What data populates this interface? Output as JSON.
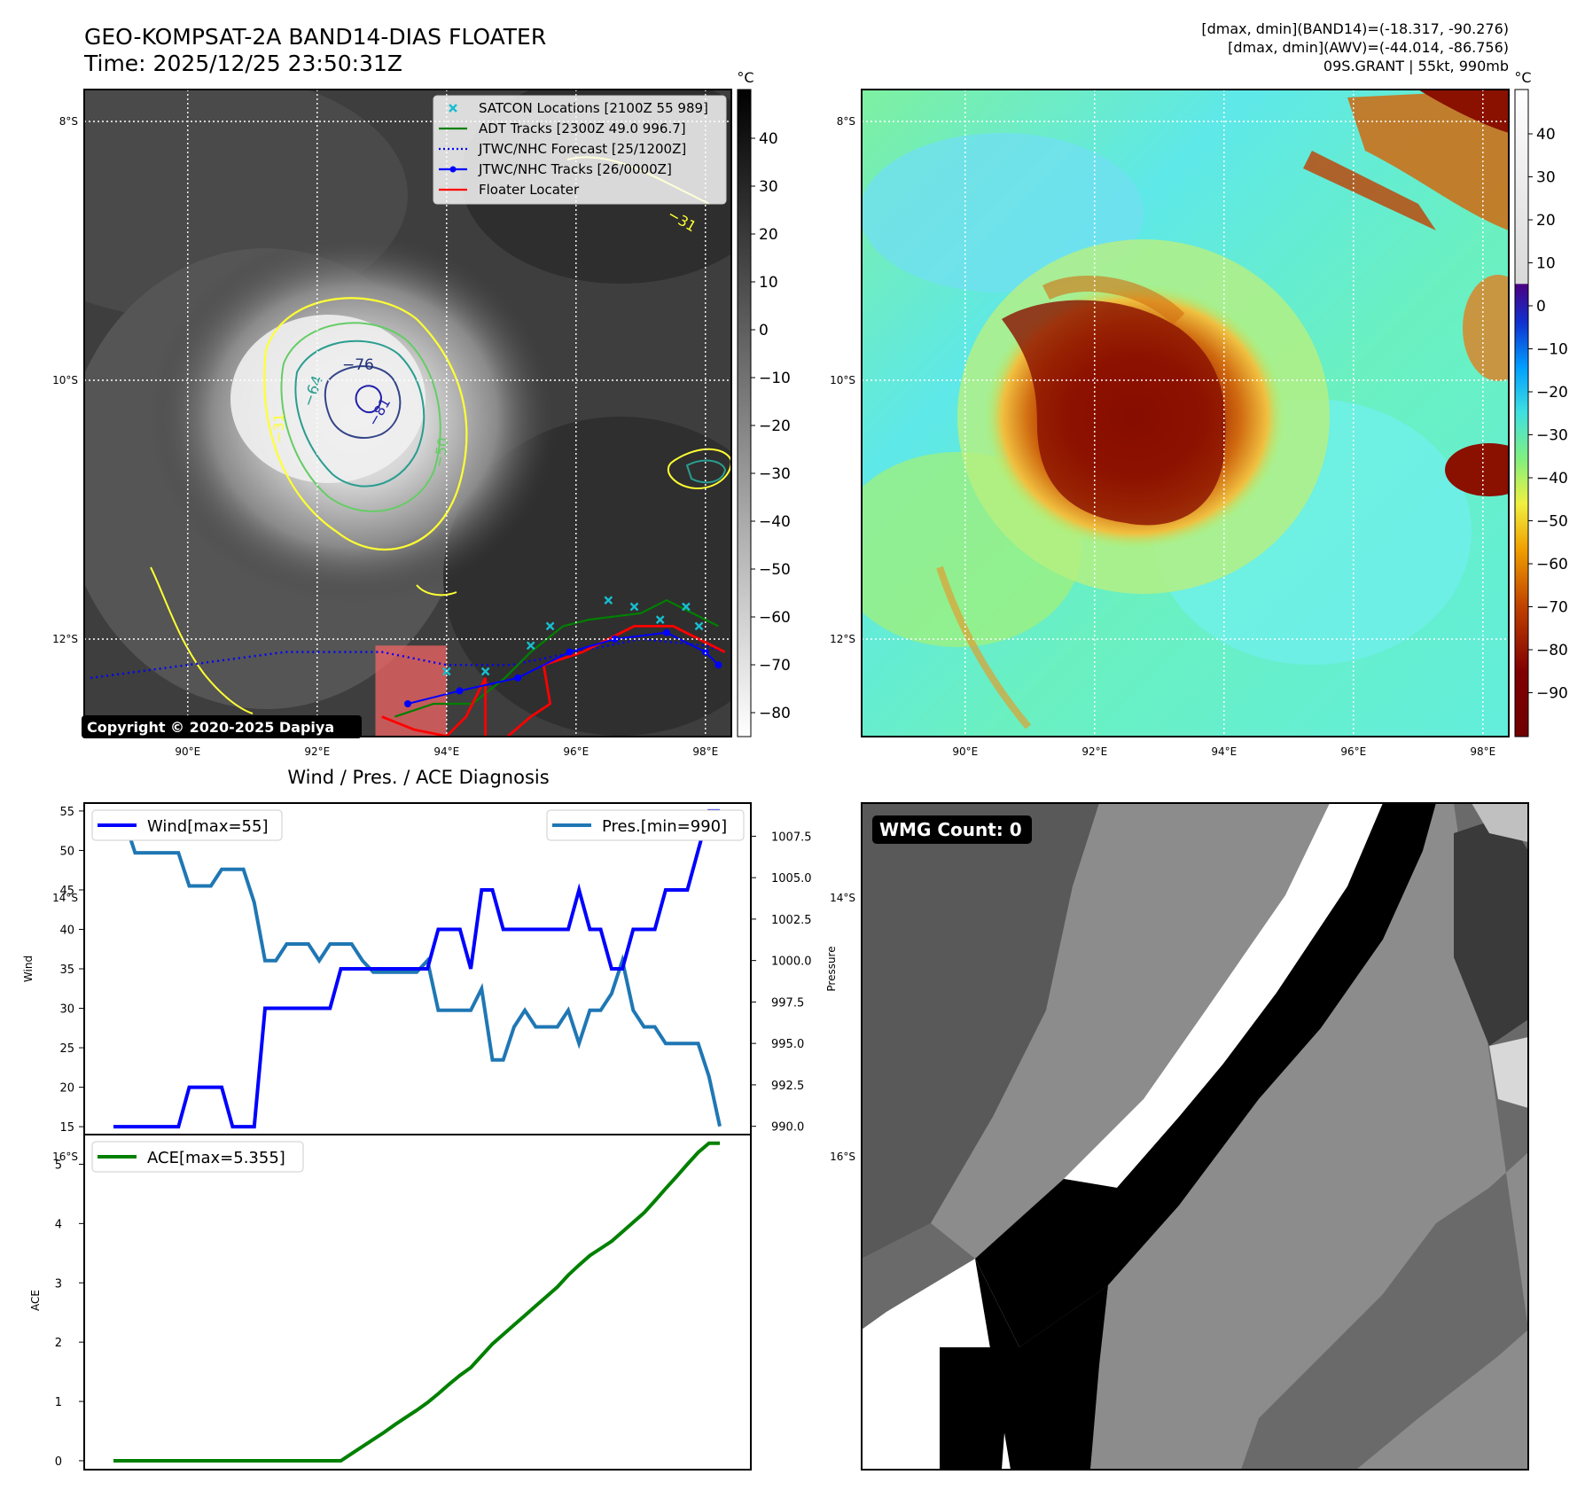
{
  "header": {
    "title_line1": "GEO-KOMPSAT-2A BAND14-DIAS FLOATER",
    "title_line2": "Time: 2025/12/25 23:50:31Z",
    "right_line1": "[dmax, dmin](BAND14)=(-18.317, -90.276)",
    "right_line2": "[dmax, dmin](AWV)=(-44.014, -86.756)",
    "right_line3": "09S.GRANT | 55kt, 990mb"
  },
  "map": {
    "lat_labels": [
      "8°S",
      "10°S",
      "12°S",
      "14°S",
      "16°S"
    ],
    "lon_labels": [
      "90°E",
      "92°E",
      "94°E",
      "96°E",
      "98°E"
    ],
    "ir_colorbar": {
      "unit": "°C",
      "ticks": [
        "40",
        "30",
        "20",
        "10",
        "0",
        "−10",
        "−20",
        "−30",
        "−40",
        "−50",
        "−60",
        "−70",
        "−80"
      ]
    },
    "wv_colorbar": {
      "unit": "°C",
      "ticks": [
        "40",
        "30",
        "20",
        "10",
        "0",
        "−10",
        "−20",
        "−30",
        "−40",
        "−50",
        "−60",
        "−70",
        "−80",
        "−90"
      ]
    },
    "contour_labels": [
      "−76",
      "−64",
      "−81",
      "−50",
      "−31",
      "−31"
    ],
    "copyright": "Copyright © 2020-2025 Dapiya",
    "legend": [
      {
        "label": "SATCON Locations [2100Z 55 989]",
        "color": "#17becf",
        "marker": "x"
      },
      {
        "label": "ADT Tracks [2300Z 49.0 996.7]",
        "color": "#008000",
        "marker": "line"
      },
      {
        "label": "JTWC/NHC Forecast [25/1200Z]",
        "color": "#0000ff",
        "marker": "dotted"
      },
      {
        "label": "JTWC/NHC Tracks [26/0000Z]",
        "color": "#0000ff",
        "marker": "line-dot"
      },
      {
        "label": "Floater Locater",
        "color": "#ff0000",
        "marker": "line"
      }
    ],
    "forecast_track": [
      [
        88.5,
        -12.3
      ],
      [
        90,
        -12.2
      ],
      [
        91.5,
        -12.1
      ],
      [
        93,
        -12.1
      ],
      [
        94,
        -12.2
      ],
      [
        95,
        -12.2
      ],
      [
        96,
        -12.1
      ],
      [
        97,
        -12.0
      ],
      [
        98,
        -12.05
      ],
      [
        98.3,
        -12.1
      ]
    ],
    "best_track": [
      [
        93.4,
        -12.5
      ],
      [
        94.2,
        -12.4
      ],
      [
        95.1,
        -12.3
      ],
      [
        95.9,
        -12.1
      ],
      [
        96.6,
        -12.0
      ],
      [
        97.4,
        -11.95
      ],
      [
        98.0,
        -12.1
      ],
      [
        98.2,
        -12.2
      ]
    ],
    "adt_track": [
      [
        93.2,
        -12.6
      ],
      [
        93.8,
        -12.5
      ],
      [
        94.4,
        -12.5
      ],
      [
        94.9,
        -12.3
      ],
      [
        95.3,
        -12.1
      ],
      [
        95.8,
        -11.9
      ],
      [
        96.2,
        -11.85
      ],
      [
        97.0,
        -11.8
      ],
      [
        97.4,
        -11.7
      ],
      [
        98.2,
        -11.9
      ]
    ],
    "satcon_points": [
      [
        94.0,
        -12.25
      ],
      [
        94.6,
        -12.25
      ],
      [
        95.3,
        -12.05
      ],
      [
        95.6,
        -11.9
      ],
      [
        96.5,
        -11.7
      ],
      [
        96.9,
        -11.75
      ],
      [
        97.3,
        -11.85
      ],
      [
        97.7,
        -11.75
      ],
      [
        97.9,
        -11.9
      ]
    ],
    "floater_track": [
      [
        93.0,
        -12.6
      ],
      [
        93.5,
        -12.7
      ],
      [
        94.0,
        -12.75
      ],
      [
        94.3,
        -12.6
      ],
      [
        94.6,
        -12.3
      ],
      [
        94.6,
        -12.9
      ],
      [
        95.3,
        -12.6
      ],
      [
        95.6,
        -12.5
      ],
      [
        95.5,
        -12.2
      ],
      [
        96.1,
        -12.1
      ],
      [
        96.5,
        -12.0
      ],
      [
        96.9,
        -11.9
      ],
      [
        97.5,
        -11.9
      ],
      [
        98.3,
        -12.1
      ]
    ],
    "floater_box": {
      "lon": [
        92.9,
        94.0
      ],
      "lat": [
        -12.05,
        -13.0
      ]
    }
  },
  "chart_data": [
    {
      "type": "line",
      "title": "Wind / Pres. / ACE Diagnosis",
      "x": [
        0,
        1,
        2,
        3,
        4,
        5,
        6,
        7,
        8,
        9,
        10,
        11,
        12,
        13,
        14,
        15,
        16,
        17,
        18,
        19,
        20,
        21,
        22,
        23,
        24,
        25,
        26,
        27,
        28,
        29,
        30,
        31,
        32,
        33,
        34,
        35,
        36,
        37,
        38,
        39,
        40,
        41,
        42,
        43,
        44,
        45,
        46,
        47,
        48,
        49,
        50,
        51,
        52,
        53,
        54,
        55,
        56
      ],
      "series": [
        {
          "name": "Wind[max=55]",
          "axis": "left",
          "color": "#0000ff",
          "values": [
            15,
            15,
            15,
            15,
            15,
            15,
            15,
            20,
            20,
            20,
            20,
            15,
            15,
            15,
            30,
            30,
            30,
            30,
            30,
            30,
            30,
            35,
            35,
            35,
            35,
            35,
            35,
            35,
            35,
            35,
            40,
            40,
            40,
            35,
            45,
            45,
            40,
            40,
            40,
            40,
            40,
            40,
            40,
            45,
            40,
            40,
            35,
            35,
            40,
            40,
            40,
            45,
            45,
            45,
            50,
            55,
            55
          ]
        },
        {
          "name": "Pres.[min=990]",
          "axis": "right",
          "color": "#1f77b4",
          "values": [
            1008.5,
            1008.5,
            1006.5,
            1006.5,
            1006.5,
            1006.5,
            1006.5,
            1004.5,
            1004.5,
            1004.5,
            1005.5,
            1005.5,
            1005.5,
            1003.5,
            1000,
            1000,
            1001,
            1001,
            1001,
            1000,
            1001,
            1001,
            1001,
            1000,
            999.3,
            999.3,
            999.3,
            999.3,
            999.3,
            1000,
            997,
            997,
            997,
            997,
            998.3,
            994,
            994,
            996,
            997,
            996,
            996,
            996,
            997,
            995,
            997,
            997,
            998,
            1000,
            997,
            996,
            996,
            995,
            995,
            995,
            995,
            993,
            990
          ]
        }
      ],
      "ylabel_left": "Wind",
      "ylabel_right": "Pressure",
      "ylim_left": [
        14,
        56
      ],
      "yticks_left": [
        15,
        20,
        25,
        30,
        35,
        40,
        45,
        50,
        55
      ],
      "ylim_right": [
        989.5,
        1009.5
      ],
      "yticks_right": [
        "990.0",
        "992.5",
        "995.0",
        "997.5",
        "1000.0",
        "1002.5",
        "1005.0",
        "1007.5"
      ],
      "legend": [
        "upper-left",
        "upper-right"
      ]
    },
    {
      "type": "line",
      "x": [
        0,
        1,
        2,
        3,
        4,
        5,
        6,
        7,
        8,
        9,
        10,
        11,
        12,
        13,
        14,
        15,
        16,
        17,
        18,
        19,
        20,
        21,
        22,
        23,
        24,
        25,
        26,
        27,
        28,
        29,
        30,
        31,
        32,
        33,
        34,
        35,
        36,
        37,
        38,
        39,
        40,
        41,
        42,
        43,
        44,
        45,
        46,
        47,
        48,
        49,
        50,
        51,
        52,
        53,
        54,
        55,
        56
      ],
      "series": [
        {
          "name": "ACE[max=5.355]",
          "color": "#008000",
          "values": [
            0,
            0,
            0,
            0,
            0,
            0,
            0,
            0,
            0,
            0,
            0,
            0,
            0,
            0,
            0,
            0,
            0,
            0,
            0,
            0,
            0,
            0,
            0.12,
            0.24,
            0.36,
            0.48,
            0.61,
            0.73,
            0.85,
            0.98,
            1.13,
            1.29,
            1.44,
            1.57,
            1.77,
            1.97,
            2.13,
            2.29,
            2.45,
            2.61,
            2.77,
            2.93,
            3.13,
            3.3,
            3.46,
            3.58,
            3.7,
            3.86,
            4.02,
            4.18,
            4.38,
            4.59,
            4.79,
            5.0,
            5.2,
            5.355,
            5.355
          ]
        }
      ],
      "ylabel": "ACE",
      "ylim": [
        -0.15,
        5.5
      ],
      "yticks": [
        0,
        1,
        2,
        3,
        4,
        5
      ],
      "legend": "upper-left"
    }
  ],
  "wmg": {
    "label": "WMG Count: 0"
  }
}
